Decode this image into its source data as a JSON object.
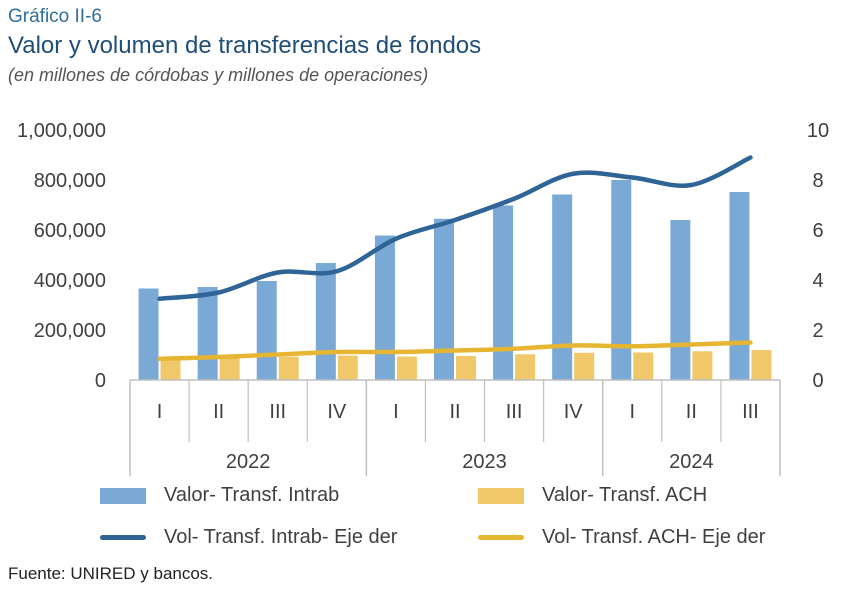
{
  "header": {
    "label": "Gráfico II-6",
    "title": "Valor y volumen de transferencias de fondos",
    "subtitle": "(en millones de córdobas y millones de operaciones)"
  },
  "source": "Fuente: UNIRED y bancos.",
  "colors": {
    "intrab_bar": "#7aa9d6",
    "ach_bar": "#f0c86a",
    "intrab_line": "#2f6496",
    "ach_line": "#e6b531",
    "axis": "#bfbfbf"
  },
  "chart_data": {
    "type": "bar",
    "categories": [
      "I",
      "II",
      "III",
      "IV",
      "I",
      "II",
      "III",
      "IV",
      "I",
      "II",
      "III"
    ],
    "groups": [
      {
        "label": "2022",
        "count": 4
      },
      {
        "label": "2023",
        "count": 4
      },
      {
        "label": "2024",
        "count": 3
      }
    ],
    "series": [
      {
        "name": "Valor- Transf. Intrab",
        "kind": "bar",
        "axis": "left",
        "values": [
          366000,
          372000,
          396000,
          468000,
          578000,
          645000,
          698000,
          742000,
          800000,
          640000,
          752000
        ]
      },
      {
        "name": "Valor- Transf. ACH",
        "kind": "bar",
        "axis": "left",
        "values": [
          85000,
          89000,
          93000,
          98000,
          94000,
          96000,
          103000,
          109000,
          110000,
          115000,
          120000
        ]
      },
      {
        "name": "Vol- Transf. Intrab- Eje der",
        "kind": "line",
        "axis": "right",
        "values": [
          3.25,
          3.5,
          4.3,
          4.35,
          5.65,
          6.4,
          7.25,
          8.25,
          8.1,
          7.8,
          8.9
        ]
      },
      {
        "name": "Vol- Transf. ACH- Eje der",
        "kind": "line",
        "axis": "right",
        "values": [
          0.85,
          0.92,
          1.02,
          1.12,
          1.12,
          1.18,
          1.25,
          1.38,
          1.35,
          1.42,
          1.5
        ]
      }
    ],
    "left_axis": {
      "min": 0,
      "max": 1000000,
      "ticks": [
        "0",
        "200,000",
        "400,000",
        "600,000",
        "800,000",
        "1,000,000"
      ]
    },
    "right_axis": {
      "min": 0,
      "max": 10,
      "ticks": [
        "0",
        "2",
        "4",
        "6",
        "8",
        "10"
      ]
    },
    "grid": false,
    "legend_position": "bottom"
  }
}
